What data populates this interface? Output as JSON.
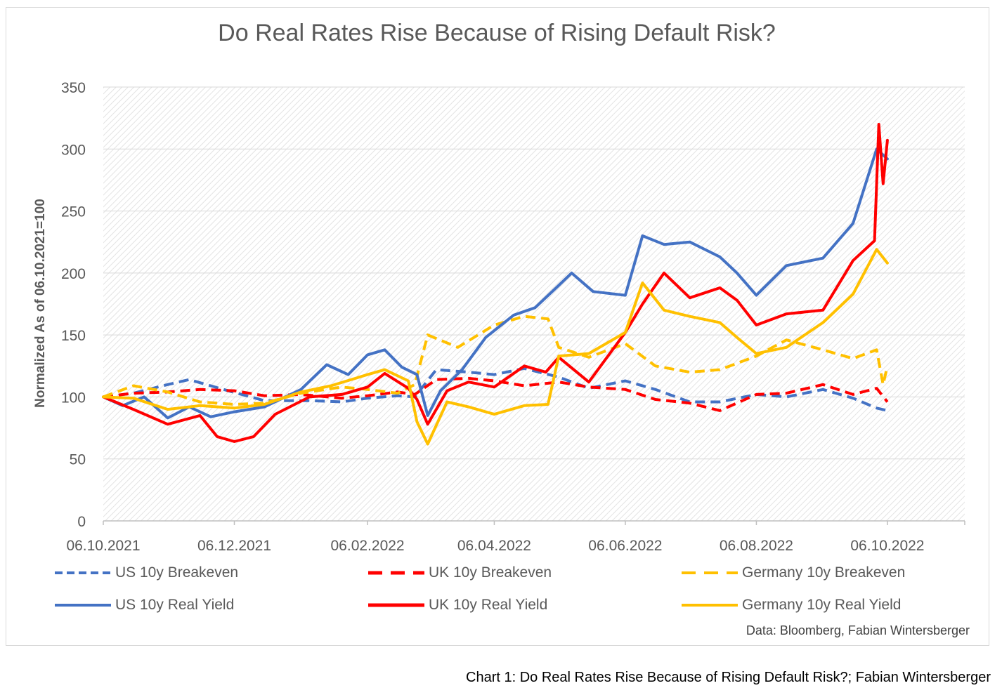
{
  "caption": "Chart 1: Do Real Rates Rise Because of Rising Default Risk?; Fabian Wintersberger",
  "chart_data": {
    "type": "line",
    "title": "Do Real Rates Rise Because of Rising Default Risk?",
    "xlabel": "",
    "ylabel": "Normalized As of 06.10.2021=100",
    "source_note": "Data: Bloomberg, Fabian Wintersberger",
    "x_ticks": [
      "06.10.2021",
      "06.12.2021",
      "06.02.2022",
      "06.04.2022",
      "06.06.2022",
      "06.08.2022",
      "06.10.2022"
    ],
    "x_range": [
      "2021-10-06",
      "2022-11-11"
    ],
    "y_ticks": [
      0,
      50,
      100,
      150,
      200,
      250,
      300,
      350
    ],
    "ylim": [
      0,
      350
    ],
    "grid": true,
    "legend_position": "bottom",
    "series": [
      {
        "name": "US 10y Breakeven",
        "color": "#4472C4",
        "style": "dashed",
        "points": [
          [
            "2021-10-06",
            100
          ],
          [
            "2021-10-20",
            103
          ],
          [
            "2021-11-05",
            110
          ],
          [
            "2021-11-15",
            114
          ],
          [
            "2021-12-01",
            106
          ],
          [
            "2021-12-20",
            97
          ],
          [
            "2022-01-10",
            97
          ],
          [
            "2022-01-25",
            96
          ],
          [
            "2022-02-06",
            99
          ],
          [
            "2022-02-20",
            101
          ],
          [
            "2022-02-28",
            100
          ],
          [
            "2022-03-10",
            122
          ],
          [
            "2022-03-25",
            120
          ],
          [
            "2022-04-06",
            118
          ],
          [
            "2022-04-20",
            123
          ],
          [
            "2022-05-06",
            116
          ],
          [
            "2022-05-20",
            107
          ],
          [
            "2022-06-06",
            113
          ],
          [
            "2022-06-20",
            106
          ],
          [
            "2022-07-06",
            96
          ],
          [
            "2022-07-20",
            96
          ],
          [
            "2022-08-06",
            102
          ],
          [
            "2022-08-20",
            100
          ],
          [
            "2022-09-06",
            106
          ],
          [
            "2022-09-20",
            99
          ],
          [
            "2022-10-01",
            91
          ],
          [
            "2022-10-06",
            89
          ]
        ]
      },
      {
        "name": "UK 10y Breakeven",
        "color": "#FF0000",
        "style": "dashed",
        "points": [
          [
            "2021-10-06",
            100
          ],
          [
            "2021-10-20",
            103
          ],
          [
            "2021-11-05",
            104
          ],
          [
            "2021-11-20",
            106
          ],
          [
            "2021-12-06",
            105
          ],
          [
            "2021-12-20",
            101
          ],
          [
            "2022-01-06",
            102
          ],
          [
            "2022-01-25",
            99
          ],
          [
            "2022-02-06",
            101
          ],
          [
            "2022-02-20",
            104
          ],
          [
            "2022-02-28",
            102
          ],
          [
            "2022-03-10",
            114
          ],
          [
            "2022-03-25",
            115
          ],
          [
            "2022-04-06",
            113
          ],
          [
            "2022-04-20",
            109
          ],
          [
            "2022-05-06",
            112
          ],
          [
            "2022-05-20",
            108
          ],
          [
            "2022-06-06",
            106
          ],
          [
            "2022-06-20",
            98
          ],
          [
            "2022-07-06",
            95
          ],
          [
            "2022-07-20",
            89
          ],
          [
            "2022-08-06",
            102
          ],
          [
            "2022-08-20",
            103
          ],
          [
            "2022-09-06",
            110
          ],
          [
            "2022-09-20",
            102
          ],
          [
            "2022-10-01",
            107
          ],
          [
            "2022-10-06",
            96
          ]
        ]
      },
      {
        "name": "Germany 10y Breakeven",
        "color": "#FFC000",
        "style": "dashed",
        "points": [
          [
            "2021-10-06",
            100
          ],
          [
            "2021-10-20",
            109
          ],
          [
            "2021-11-05",
            104
          ],
          [
            "2021-11-20",
            96
          ],
          [
            "2021-12-06",
            94
          ],
          [
            "2021-12-20",
            95
          ],
          [
            "2022-01-06",
            103
          ],
          [
            "2022-01-25",
            108
          ],
          [
            "2022-02-06",
            106
          ],
          [
            "2022-02-20",
            103
          ],
          [
            "2022-02-28",
            110
          ],
          [
            "2022-03-06",
            150
          ],
          [
            "2022-03-20",
            140
          ],
          [
            "2022-04-06",
            158
          ],
          [
            "2022-04-20",
            165
          ],
          [
            "2022-05-01",
            163
          ],
          [
            "2022-05-06",
            140
          ],
          [
            "2022-05-20",
            132
          ],
          [
            "2022-06-06",
            143
          ],
          [
            "2022-06-20",
            125
          ],
          [
            "2022-07-06",
            120
          ],
          [
            "2022-07-20",
            122
          ],
          [
            "2022-08-06",
            133
          ],
          [
            "2022-08-20",
            146
          ],
          [
            "2022-09-06",
            138
          ],
          [
            "2022-09-20",
            131
          ],
          [
            "2022-10-01",
            138
          ],
          [
            "2022-10-04",
            110
          ],
          [
            "2022-10-06",
            125
          ]
        ]
      },
      {
        "name": "US 10y Real Yield",
        "color": "#4472C4",
        "style": "solid",
        "points": [
          [
            "2021-10-06",
            100
          ],
          [
            "2021-10-15",
            93
          ],
          [
            "2021-10-25",
            100
          ],
          [
            "2021-11-05",
            83
          ],
          [
            "2021-11-15",
            92
          ],
          [
            "2021-11-25",
            84
          ],
          [
            "2021-12-06",
            88
          ],
          [
            "2021-12-20",
            92
          ],
          [
            "2022-01-06",
            106
          ],
          [
            "2022-01-18",
            126
          ],
          [
            "2022-01-28",
            118
          ],
          [
            "2022-02-06",
            134
          ],
          [
            "2022-02-14",
            138
          ],
          [
            "2022-02-22",
            124
          ],
          [
            "2022-03-01",
            118
          ],
          [
            "2022-03-06",
            85
          ],
          [
            "2022-03-12",
            105
          ],
          [
            "2022-03-22",
            122
          ],
          [
            "2022-04-02",
            148
          ],
          [
            "2022-04-15",
            166
          ],
          [
            "2022-04-25",
            172
          ],
          [
            "2022-05-06",
            190
          ],
          [
            "2022-05-12",
            200
          ],
          [
            "2022-05-22",
            185
          ],
          [
            "2022-06-06",
            182
          ],
          [
            "2022-06-14",
            230
          ],
          [
            "2022-06-24",
            223
          ],
          [
            "2022-07-06",
            225
          ],
          [
            "2022-07-20",
            213
          ],
          [
            "2022-07-28",
            200
          ],
          [
            "2022-08-06",
            182
          ],
          [
            "2022-08-20",
            206
          ],
          [
            "2022-09-06",
            212
          ],
          [
            "2022-09-20",
            240
          ],
          [
            "2022-10-01",
            300
          ],
          [
            "2022-10-06",
            292
          ]
        ]
      },
      {
        "name": "UK 10y Real Yield",
        "color": "#FF0000",
        "style": "solid",
        "points": [
          [
            "2021-10-06",
            100
          ],
          [
            "2021-10-20",
            90
          ],
          [
            "2021-11-05",
            78
          ],
          [
            "2021-11-20",
            85
          ],
          [
            "2021-11-28",
            68
          ],
          [
            "2021-12-06",
            64
          ],
          [
            "2021-12-15",
            68
          ],
          [
            "2021-12-25",
            86
          ],
          [
            "2022-01-10",
            100
          ],
          [
            "2022-01-25",
            102
          ],
          [
            "2022-02-06",
            108
          ],
          [
            "2022-02-14",
            119
          ],
          [
            "2022-02-25",
            107
          ],
          [
            "2022-03-01",
            98
          ],
          [
            "2022-03-06",
            78
          ],
          [
            "2022-03-15",
            105
          ],
          [
            "2022-03-25",
            112
          ],
          [
            "2022-04-06",
            108
          ],
          [
            "2022-04-20",
            125
          ],
          [
            "2022-04-30",
            120
          ],
          [
            "2022-05-06",
            132
          ],
          [
            "2022-05-20",
            112
          ],
          [
            "2022-06-06",
            152
          ],
          [
            "2022-06-14",
            175
          ],
          [
            "2022-06-24",
            200
          ],
          [
            "2022-07-06",
            180
          ],
          [
            "2022-07-20",
            188
          ],
          [
            "2022-07-28",
            178
          ],
          [
            "2022-08-06",
            158
          ],
          [
            "2022-08-20",
            167
          ],
          [
            "2022-09-06",
            170
          ],
          [
            "2022-09-20",
            210
          ],
          [
            "2022-09-30",
            226
          ],
          [
            "2022-10-02",
            320
          ],
          [
            "2022-10-04",
            272
          ],
          [
            "2022-10-06",
            307
          ]
        ]
      },
      {
        "name": "Germany 10y Real Yield",
        "color": "#FFC000",
        "style": "solid",
        "points": [
          [
            "2021-10-06",
            100
          ],
          [
            "2021-10-20",
            99
          ],
          [
            "2021-11-05",
            90
          ],
          [
            "2021-11-20",
            93
          ],
          [
            "2021-12-06",
            91
          ],
          [
            "2021-12-20",
            94
          ],
          [
            "2022-01-06",
            104
          ],
          [
            "2022-01-20",
            109
          ],
          [
            "2022-02-06",
            118
          ],
          [
            "2022-02-14",
            122
          ],
          [
            "2022-02-25",
            113
          ],
          [
            "2022-03-01",
            80
          ],
          [
            "2022-03-06",
            62
          ],
          [
            "2022-03-15",
            96
          ],
          [
            "2022-03-25",
            92
          ],
          [
            "2022-04-06",
            86
          ],
          [
            "2022-04-20",
            93
          ],
          [
            "2022-05-01",
            94
          ],
          [
            "2022-05-06",
            133
          ],
          [
            "2022-05-20",
            135
          ],
          [
            "2022-06-06",
            152
          ],
          [
            "2022-06-14",
            192
          ],
          [
            "2022-06-24",
            170
          ],
          [
            "2022-07-06",
            165
          ],
          [
            "2022-07-20",
            160
          ],
          [
            "2022-07-28",
            148
          ],
          [
            "2022-08-06",
            135
          ],
          [
            "2022-08-20",
            140
          ],
          [
            "2022-09-06",
            160
          ],
          [
            "2022-09-20",
            183
          ],
          [
            "2022-10-01",
            219
          ],
          [
            "2022-10-06",
            208
          ]
        ]
      }
    ]
  }
}
